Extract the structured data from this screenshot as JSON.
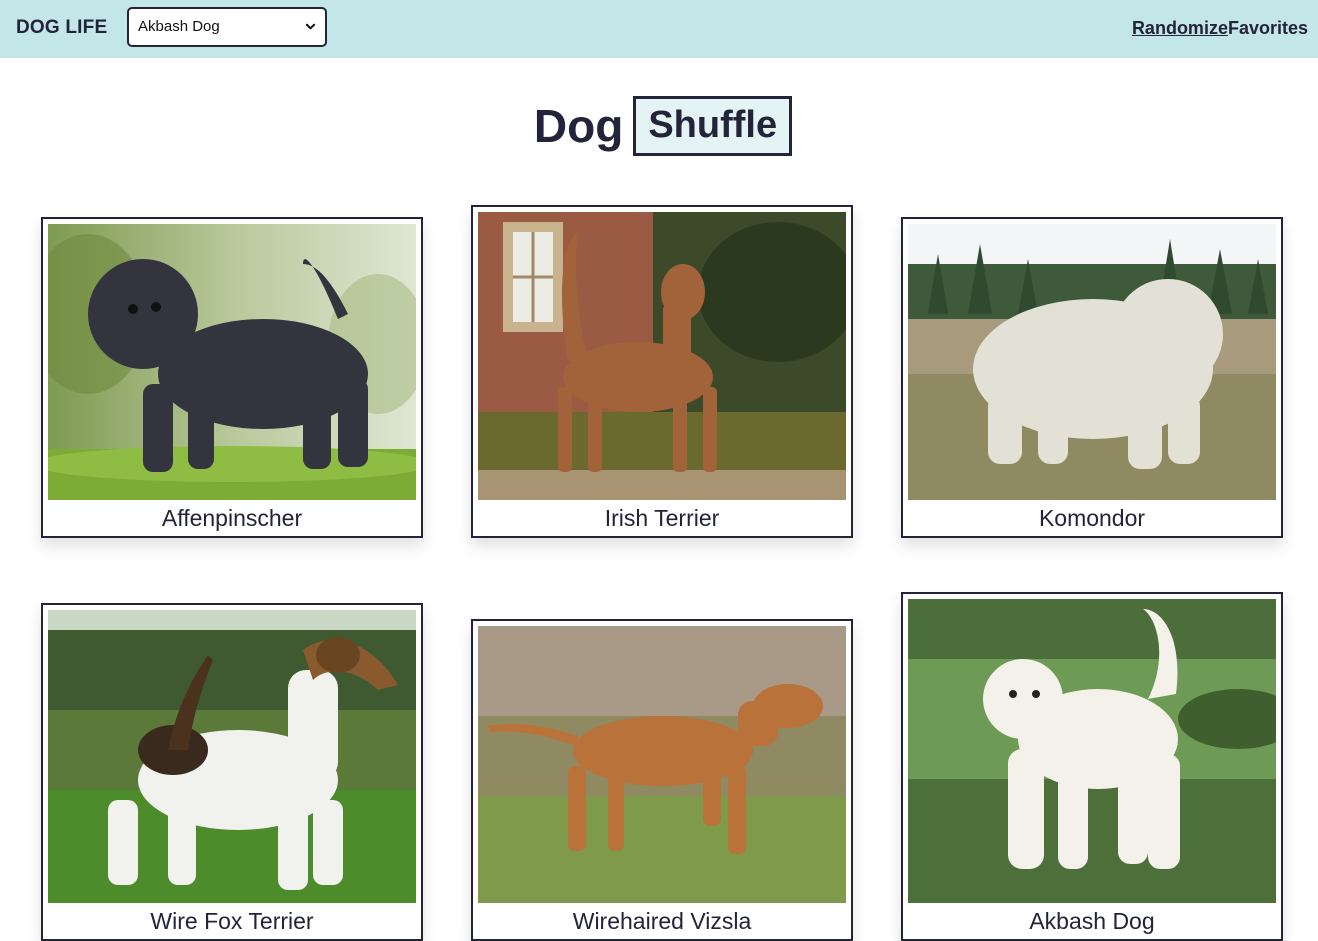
{
  "header": {
    "brand": "DOG LIFE",
    "breed_select": {
      "value": "Akbash Dog"
    },
    "nav": {
      "randomize": "Randomize",
      "favorites": "Favorites"
    }
  },
  "title": {
    "word1": "Dog",
    "word2": "Shuffle"
  },
  "cards": [
    {
      "name": "Affenpinscher",
      "image": "black-shaggy-dog-on-grass"
    },
    {
      "name": "Irish Terrier",
      "image": "red-terrier-by-brick-house"
    },
    {
      "name": "Komondor",
      "image": "white-corded-dog-in-field"
    },
    {
      "name": "Wire Fox Terrier",
      "image": "white-terrier-on-lawn"
    },
    {
      "name": "Wirehaired Vizsla",
      "image": "red-pointer-walking-in-grass"
    },
    {
      "name": "Akbash Dog",
      "image": "white-dog-in-green-field"
    }
  ],
  "colors": {
    "header_bg": "#c3e6e8",
    "ink": "#23233a",
    "shuffle_bg": "#e4f3f4"
  }
}
